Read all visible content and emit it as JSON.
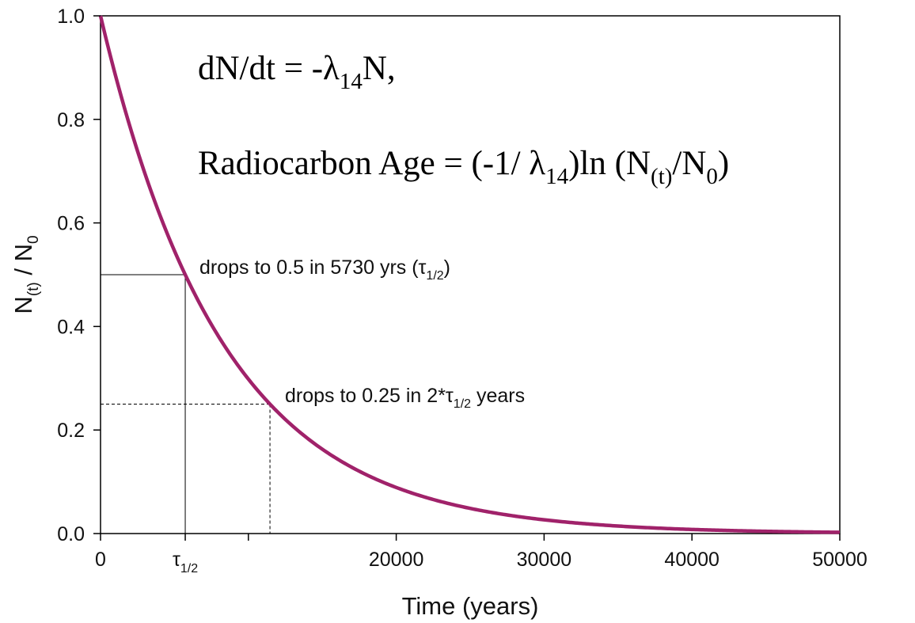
{
  "chart_data": {
    "type": "line",
    "xlabel": "Time (years)",
    "ylabel": {
      "base": "N",
      "sub1": "(t)",
      "mid": " / N",
      "sub2": "0"
    },
    "xlim": [
      0,
      50000
    ],
    "ylim": [
      0,
      1.0
    ],
    "grid": false,
    "x_ticks": [
      {
        "value": 0,
        "label": "0"
      },
      {
        "value": 5730,
        "label": "τ",
        "sub": "1/2"
      },
      {
        "value": 10000,
        "label": ""
      },
      {
        "value": 20000,
        "label": "20000"
      },
      {
        "value": 30000,
        "label": "30000"
      },
      {
        "value": 40000,
        "label": "40000"
      },
      {
        "value": 50000,
        "label": "50000"
      }
    ],
    "y_ticks": [
      {
        "value": 0.0,
        "label": "0.0"
      },
      {
        "value": 0.2,
        "label": "0.2"
      },
      {
        "value": 0.4,
        "label": "0.4"
      },
      {
        "value": 0.6,
        "label": "0.6"
      },
      {
        "value": 0.8,
        "label": "0.8"
      },
      {
        "value": 1.0,
        "label": "1.0"
      }
    ],
    "series": [
      {
        "color": "#a0226a",
        "half_life": 5730,
        "x": [
          0,
          2500,
          5000,
          5730,
          7500,
          10000,
          11460,
          12500,
          15000,
          17500,
          20000,
          22500,
          25000,
          27500,
          30000,
          32500,
          35000,
          37500,
          40000,
          42500,
          45000,
          47500,
          50000
        ],
        "y": [
          1.0,
          0.739,
          0.546,
          0.5,
          0.404,
          0.298,
          0.25,
          0.221,
          0.163,
          0.12,
          0.089,
          0.066,
          0.049,
          0.036,
          0.027,
          0.02,
          0.014,
          0.011,
          0.008,
          0.006,
          0.004,
          0.003,
          0.002
        ]
      }
    ],
    "guides": [
      {
        "x": 5730,
        "y": 0.5,
        "style": "solid"
      },
      {
        "x": 11460,
        "y": 0.25,
        "style": "dashed"
      }
    ],
    "annotations": [
      {
        "text": "drops to 0.5 in 5730 yrs (τ",
        "sub": "1/2",
        "after": ")"
      },
      {
        "text": "drops to 0.25 in 2*τ",
        "sub": "1/2",
        "after": " years"
      }
    ],
    "equations": [
      {
        "parts": [
          "dN/dt = -λ",
          "14",
          "N,"
        ]
      },
      {
        "parts": [
          "Radiocarbon Age = (-1/ λ",
          "14",
          ")ln (N",
          "(t)",
          "/N",
          "0",
          ")"
        ]
      }
    ]
  }
}
